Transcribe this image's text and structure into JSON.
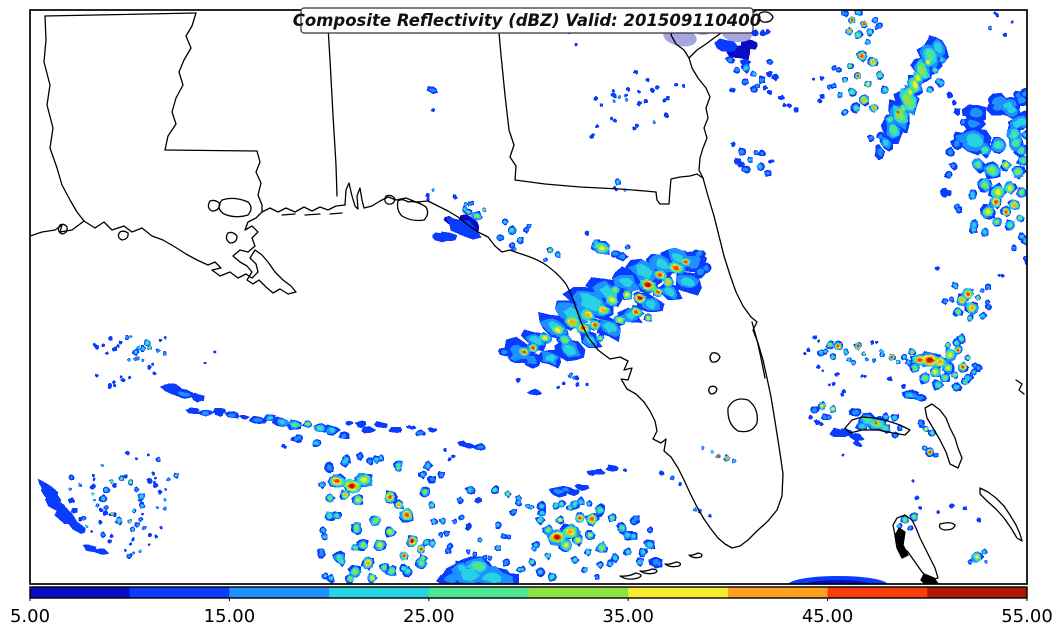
{
  "figure": {
    "title": "Composite Reflectivity (dBZ) Valid: 201509110400",
    "background": "#ffffff",
    "frame_color": "#000000"
  },
  "colorbar": {
    "units": "dBZ",
    "min": 5,
    "max": 55,
    "step": 5,
    "tick_labels": [
      "5.00",
      "15.00",
      "25.00",
      "35.00",
      "45.00",
      "55.00"
    ],
    "segment_colors": [
      "#0b0bc4",
      "#0a3cff",
      "#1e90ff",
      "#27d3e3",
      "#4fe690",
      "#8de33f",
      "#f6ec2f",
      "#ffa01e",
      "#f93d0b",
      "#b01806"
    ],
    "overlap_tint": "#a5a5e0"
  }
}
